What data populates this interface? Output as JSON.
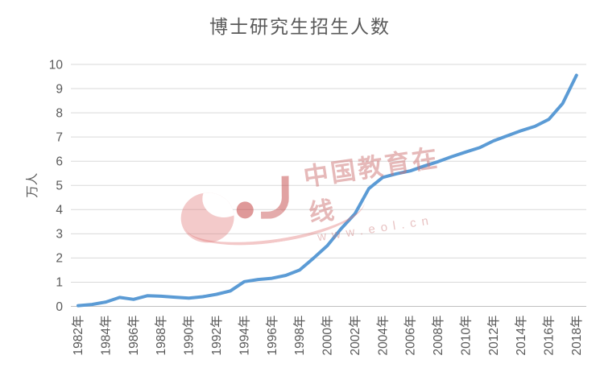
{
  "chart_data": {
    "type": "line",
    "title": "博士研究生招生人数",
    "xlabel": "",
    "ylabel": "万人",
    "ylim": [
      0,
      10
    ],
    "y_ticks": [
      0,
      1,
      2,
      3,
      4,
      5,
      6,
      7,
      8,
      9,
      10
    ],
    "x_tick_labels": [
      "1982年",
      "1984年",
      "1986年",
      "1988年",
      "1990年",
      "1992年",
      "1994年",
      "1996年",
      "1998年",
      "2000年",
      "2002年",
      "2004年",
      "2006年",
      "2008年",
      "2010年",
      "2012年",
      "2014年",
      "2016年",
      "2018年"
    ],
    "x": [
      1982,
      1983,
      1984,
      1985,
      1986,
      1987,
      1988,
      1989,
      1990,
      1991,
      1992,
      1993,
      1994,
      1995,
      1996,
      1997,
      1998,
      1999,
      2000,
      2001,
      2002,
      2003,
      2004,
      2005,
      2006,
      2007,
      2008,
      2009,
      2010,
      2011,
      2012,
      2013,
      2014,
      2015,
      2016,
      2017,
      2018
    ],
    "series": [
      {
        "name": "博士研究生招生人数",
        "values": [
          0.03,
          0.08,
          0.18,
          0.37,
          0.29,
          0.44,
          0.42,
          0.38,
          0.34,
          0.4,
          0.5,
          0.64,
          1.02,
          1.11,
          1.16,
          1.28,
          1.5,
          1.99,
          2.51,
          3.21,
          3.83,
          4.87,
          5.33,
          5.48,
          5.6,
          5.8,
          5.98,
          6.19,
          6.38,
          6.56,
          6.84,
          7.05,
          7.26,
          7.44,
          7.73,
          8.39,
          9.55
        ],
        "color": "#5B9BD5"
      }
    ],
    "grid": "horizontal",
    "legend": "none"
  },
  "watermark": {
    "logo_text": "eol",
    "brand": "中国教育在线",
    "url": "www.eol.cn",
    "color": "#CD7373"
  },
  "colors": {
    "line": "#5B9BD5",
    "gridline": "#D9D9D9",
    "axis_line": "#BFBFBF",
    "text": "#595959",
    "background": "#FFFFFF"
  }
}
